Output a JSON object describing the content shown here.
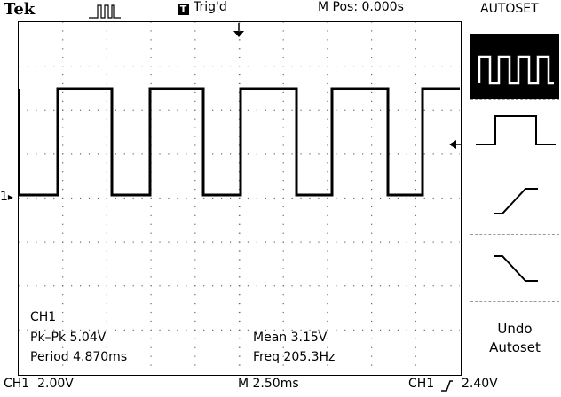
{
  "header": {
    "brand": "Tek",
    "acquire_icon": "pulse-icon",
    "trigger_badge": "T",
    "trigger_status": "Trig'd",
    "horizontal_position": "M Pos: 0.000s",
    "menu_title": "AUTOSET"
  },
  "screen": {
    "channel_marker": "1",
    "measurements": {
      "channel": "CH1",
      "pk_pk": "Pk–Pk 5.04V",
      "period": "Period 4.870ms",
      "mean": "Mean 3.15V",
      "freq": "Freq 205.3Hz"
    }
  },
  "menu": {
    "items": [
      {
        "icon": "multi-cycle-square-wave-icon"
      },
      {
        "icon": "single-cycle-pulse-icon"
      },
      {
        "icon": "rising-edge-icon"
      },
      {
        "icon": "falling-edge-icon"
      }
    ],
    "undo_line1": "Undo",
    "undo_line2": "Autoset"
  },
  "status_bar": {
    "ch1_scale": "CH1  2.00V",
    "timebase": "M 2.50ms",
    "trigger_source": "CH1",
    "trigger_level": "2.40V"
  }
}
